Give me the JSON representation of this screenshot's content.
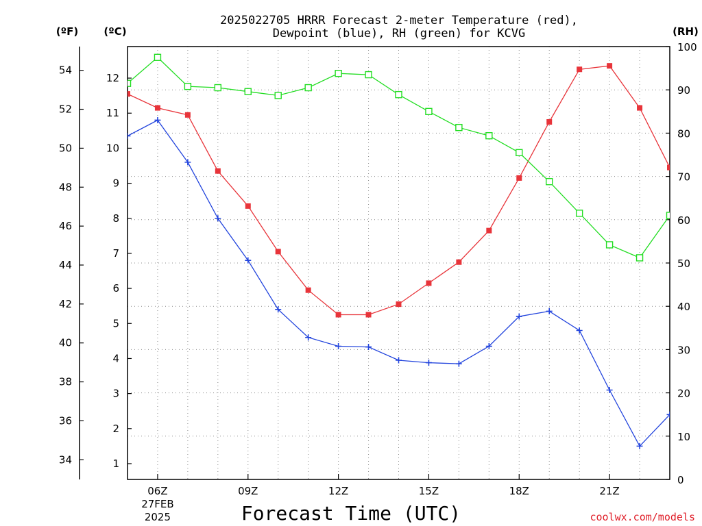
{
  "chart_data": {
    "type": "line",
    "title_line1": "2025022705 HRRR Forecast 2-meter Temperature (red),",
    "title_line2": "Dewpoint (blue), RH (green) for KCVG",
    "xlabel": "Forecast Time (UTC)",
    "credit": "coolwx.com/models",
    "unit_labels": {
      "fahrenheit": "(ºF)",
      "celsius": "(ºC)",
      "rh": "(RH)"
    },
    "x_ticks": [
      {
        "hour": 6,
        "label": "06Z",
        "sub1": "27FEB",
        "sub2": "2025"
      },
      {
        "hour": 9,
        "label": "09Z"
      },
      {
        "hour": 12,
        "label": "12Z"
      },
      {
        "hour": 15,
        "label": "15Z"
      },
      {
        "hour": 18,
        "label": "18Z"
      },
      {
        "hour": 21,
        "label": "21Z"
      }
    ],
    "x_range": [
      5,
      23
    ],
    "celsius_range": [
      0.55,
      12.9
    ],
    "celsius_ticks": [
      1,
      2,
      3,
      4,
      5,
      6,
      7,
      8,
      9,
      10,
      11,
      12
    ],
    "fahrenheit_ticks": [
      34,
      36,
      38,
      40,
      42,
      44,
      46,
      48,
      50,
      52,
      54
    ],
    "rh_range": [
      0,
      100
    ],
    "rh_ticks": [
      0,
      10,
      20,
      30,
      40,
      50,
      60,
      70,
      80,
      90,
      100
    ],
    "grid": true,
    "series": [
      {
        "name": "Temperature",
        "axis": "celsius",
        "color": "#e8343a",
        "marker": "filled-square",
        "x": [
          5,
          6,
          7,
          8,
          9,
          10,
          11,
          12,
          13,
          14,
          15,
          16,
          17,
          18,
          19,
          20,
          21,
          22,
          23
        ],
        "y": [
          11.55,
          11.15,
          10.95,
          9.35,
          8.35,
          7.05,
          5.95,
          5.25,
          5.25,
          5.55,
          6.15,
          6.75,
          7.65,
          9.15,
          10.75,
          12.25,
          12.35,
          11.15,
          9.45
        ]
      },
      {
        "name": "Dewpoint",
        "axis": "celsius",
        "color": "#2244dd",
        "marker": "plus",
        "x": [
          5,
          6,
          7,
          8,
          9,
          10,
          11,
          12,
          13,
          14,
          15,
          16,
          17,
          18,
          19,
          20,
          21,
          22,
          23
        ],
        "y": [
          10.35,
          10.8,
          9.6,
          8.0,
          6.8,
          5.4,
          4.6,
          4.35,
          4.33,
          3.95,
          3.88,
          3.85,
          4.35,
          5.2,
          5.35,
          4.8,
          3.1,
          1.5,
          2.4
        ]
      },
      {
        "name": "RH",
        "axis": "rh",
        "color": "#22dd22",
        "marker": "open-square",
        "x": [
          5,
          6,
          7,
          8,
          9,
          10,
          11,
          12,
          13,
          14,
          15,
          16,
          17,
          18,
          19,
          20,
          21,
          22,
          23
        ],
        "y": [
          91.5,
          97.5,
          90.8,
          90.5,
          89.6,
          88.7,
          90.5,
          93.8,
          93.5,
          88.9,
          85.0,
          81.3,
          79.4,
          75.5,
          68.8,
          61.5,
          54.2,
          51.2,
          61.0
        ]
      }
    ]
  }
}
